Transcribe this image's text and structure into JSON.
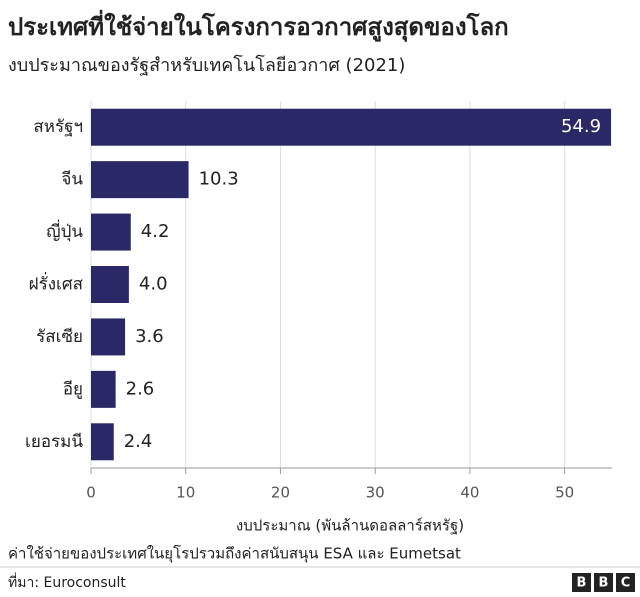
{
  "chart_data": {
    "type": "barh",
    "title": "ประเทศที่ใช้จ่ายในโครงการอวกาศสูงสุดของโลก",
    "subtitle": "งบประมาณของรัฐสำหรับเทคโนโลยีอวกาศ (2021)",
    "categories": [
      "สหรัฐฯ",
      "จีน",
      "ญี่ปุ่น",
      "ฝรั่งเศส",
      "รัสเซีย",
      "อียู",
      "เยอรมนี"
    ],
    "values": [
      54.9,
      10.3,
      4.2,
      4.0,
      3.6,
      2.6,
      2.4
    ],
    "value_labels": [
      "54.9",
      "10.3",
      "4.2",
      "4.0",
      "3.6",
      "2.6",
      "2.4"
    ],
    "color": "#2b2868",
    "xlim": [
      0,
      55
    ],
    "xticks": [
      0,
      10,
      20,
      30,
      40,
      50
    ],
    "grid": true,
    "xlabel": "งบประมาณ (พันล้านดอลลาร์สหรัฐ)",
    "note": "ค่าใช้จ่ายของประเทศในยุโรปรวมถึงค่าสนับสนุน ESA และ Eumetsat",
    "source": "ที่มา: Euroconsult",
    "logo": [
      "B",
      "B",
      "C"
    ]
  }
}
